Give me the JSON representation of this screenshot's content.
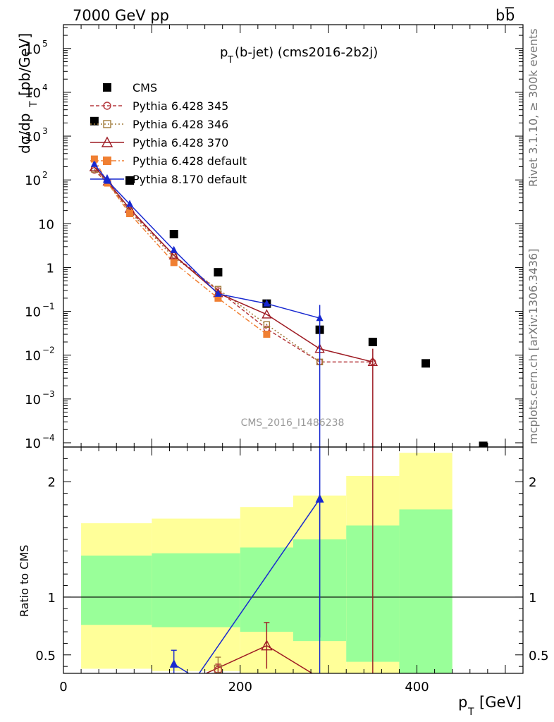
{
  "header": {
    "left": "7000 GeV pp",
    "right_base": "b",
    "right_bar": "b"
  },
  "side_labels": {
    "top": "Rivet 3.1.10, ≥ 300k events",
    "bottom": "mcplots.cern.ch [arXiv:1306.3436]"
  },
  "chart_data": [
    {
      "type": "scatter",
      "panel": "main",
      "title_base": "p",
      "title_sub": "T",
      "title_rest": "(b-jet) (cms2016-2b2j)",
      "watermark": "CMS_2016_I1486238",
      "ylabel_main": "dσ/dp",
      "ylabel_sub": "T",
      "ylabel_unit": "[pb/GeV]",
      "y_scale": "log",
      "xlim": [
        0,
        520
      ],
      "ylim": [
        8e-05,
        350000
      ],
      "y_ticks": [
        {
          "v": 100000,
          "base": "10",
          "exp": "5"
        },
        {
          "v": 10000,
          "base": "10",
          "exp": "4"
        },
        {
          "v": 1000,
          "base": "10",
          "exp": "3"
        },
        {
          "v": 100,
          "base": "10",
          "exp": "2"
        },
        {
          "v": 10,
          "base": "10",
          "exp": ""
        },
        {
          "v": 1,
          "base": "1",
          "exp": ""
        },
        {
          "v": 0.1,
          "base": "10",
          "exp": "−1"
        },
        {
          "v": 0.01,
          "base": "10",
          "exp": "−2"
        },
        {
          "v": 0.001,
          "base": "10",
          "exp": "−3"
        },
        {
          "v": 0.0001,
          "base": "10",
          "exp": "−4"
        }
      ],
      "legend_position": "top-left",
      "series": [
        {
          "name": "CMS",
          "style": "data",
          "color": "#000000",
          "marker": "square-filled",
          "x": [
            35,
            75,
            125,
            175,
            230,
            290,
            350,
            410,
            475
          ],
          "y": [
            2200,
            97,
            5.8,
            0.78,
            0.15,
            0.038,
            0.02,
            0.0065,
            8.5e-05
          ]
        },
        {
          "name": "Pythia 6.428 345",
          "style": "mc",
          "color": "#b5393e",
          "marker": "circle-open",
          "dash": "5,3",
          "x": [
            35,
            50,
            75,
            125,
            175,
            230,
            290,
            350
          ],
          "y": [
            165,
            85,
            20,
            1.9,
            0.3,
            0.04,
            0.007,
            0.007
          ]
        },
        {
          "name": "Pythia 6.428 346",
          "style": "mc",
          "color": "#a07a3a",
          "marker": "square-open",
          "dash": "2,3",
          "x": [
            35,
            50,
            75,
            125,
            175,
            230,
            290
          ],
          "y": [
            175,
            88,
            19,
            1.7,
            0.32,
            0.05,
            0.007
          ]
        },
        {
          "name": "Pythia 6.428 370",
          "style": "mc",
          "color": "#9e1b23",
          "marker": "triangle-open",
          "dash": "",
          "x": [
            35,
            50,
            75,
            125,
            175,
            230,
            290,
            350
          ],
          "y": [
            195,
            92,
            22,
            1.9,
            0.26,
            0.085,
            0.014,
            0.007
          ]
        },
        {
          "name": "Pythia 6.428 default",
          "style": "mc",
          "color": "#f07f32",
          "marker": "square-filled",
          "dash": "7,3,2,3",
          "x": [
            35,
            50,
            75,
            125,
            175,
            230
          ],
          "y": [
            300,
            85,
            17,
            1.3,
            0.2,
            0.03
          ]
        },
        {
          "name": "Pythia 8.170 default",
          "style": "mc",
          "color": "#1728d0",
          "marker": "triangle-filled",
          "dash": "",
          "x": [
            35,
            50,
            75,
            125,
            175,
            230,
            290
          ],
          "y": [
            230,
            95,
            28,
            2.5,
            0.25,
            0.15,
            0.07
          ]
        }
      ]
    },
    {
      "type": "line",
      "panel": "ratio",
      "ylabel": "Ratio to CMS",
      "xlabel_base": "p",
      "xlabel_sub": "T",
      "xlabel_unit": "[GeV]",
      "xlim": [
        0,
        520
      ],
      "ylim": [
        0.34,
        2.3
      ],
      "x_ticks": [
        0,
        200,
        400
      ],
      "y_ticks": [
        0.5,
        1,
        2
      ],
      "reference": 1,
      "band_colors": {
        "inner": "#99ff99",
        "outer": "#ffff99"
      },
      "bands": [
        {
          "x0": 20,
          "x1": 100,
          "inner": [
            0.76,
            1.36
          ],
          "outer": [
            0.38,
            1.64
          ]
        },
        {
          "x0": 100,
          "x1": 200,
          "inner": [
            0.74,
            1.38
          ],
          "outer": [
            0.36,
            1.68
          ]
        },
        {
          "x0": 200,
          "x1": 260,
          "inner": [
            0.7,
            1.43
          ],
          "outer": [
            0.33,
            1.78
          ]
        },
        {
          "x0": 260,
          "x1": 320,
          "inner": [
            0.62,
            1.5
          ],
          "outer": [
            0.33,
            1.88
          ]
        },
        {
          "x0": 320,
          "x1": 380,
          "inner": [
            0.44,
            1.62
          ],
          "outer": [
            0.33,
            2.05
          ]
        },
        {
          "x0": 380,
          "x1": 440,
          "inner": [
            0.33,
            1.76
          ],
          "outer": [
            0.33,
            2.25
          ]
        }
      ],
      "series": [
        {
          "name": "Pythia 8.170 default",
          "color": "#1728d0",
          "marker": "triangle-filled",
          "x": [
            125,
            150,
            290
          ],
          "y": [
            0.42,
            0.3,
            1.85
          ],
          "err": [
            0.12,
            0,
            1.2
          ]
        },
        {
          "name": "Pythia 6.428 370",
          "color": "#9e1b23",
          "marker": "triangle-open",
          "x": [
            150,
            230,
            290
          ],
          "y": [
            0.3,
            0.58,
            0.3
          ],
          "err": [
            0,
            0.2,
            0
          ]
        },
        {
          "name": "Pythia 6.428 346",
          "color": "#a07a3a",
          "marker": "square-open",
          "x": [
            175
          ],
          "y": [
            0.38
          ],
          "err": [
            0.1
          ]
        },
        {
          "name": "Pythia 6.428 345",
          "color": "#b5393e",
          "marker": "circle-open",
          "x": [
            175
          ],
          "y": [
            0.37
          ],
          "err": [
            0.05
          ]
        }
      ]
    }
  ]
}
